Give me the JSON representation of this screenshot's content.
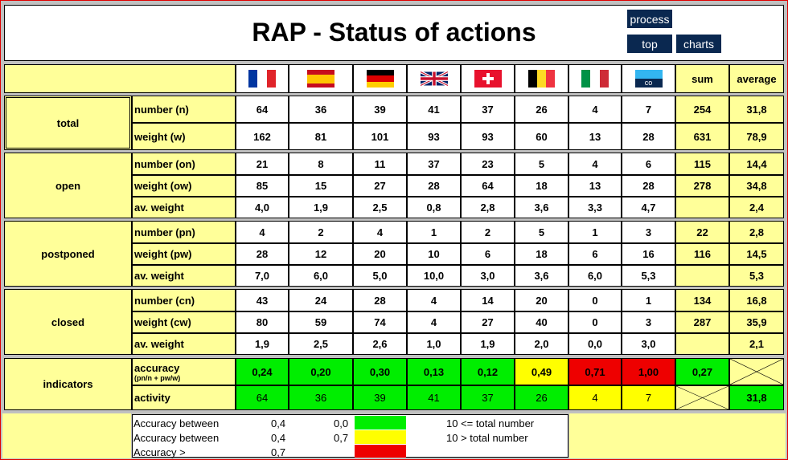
{
  "title": "RAP - Status of actions",
  "buttons": {
    "process": "process",
    "top": "top",
    "charts": "charts"
  },
  "columns": {
    "flags": [
      {
        "name": "france-flag"
      },
      {
        "name": "spain-flag"
      },
      {
        "name": "germany-flag"
      },
      {
        "name": "uk-flag"
      },
      {
        "name": "switzerland-flag"
      },
      {
        "name": "belgium-flag"
      },
      {
        "name": "italy-flag"
      },
      {
        "name": "co-flag",
        "text": "co"
      }
    ],
    "sum": "sum",
    "average": "average"
  },
  "groups": [
    {
      "label": "total",
      "rows": [
        {
          "label": "number (n)",
          "values": [
            "64",
            "36",
            "39",
            "41",
            "37",
            "26",
            "4",
            "7"
          ],
          "sum": "254",
          "avg": "31,8"
        },
        {
          "label": "weight (w)",
          "values": [
            "162",
            "81",
            "101",
            "93",
            "93",
            "60",
            "13",
            "28"
          ],
          "sum": "631",
          "avg": "78,9"
        }
      ]
    },
    {
      "label": "open",
      "rows": [
        {
          "label": "number (on)",
          "values": [
            "21",
            "8",
            "11",
            "37",
            "23",
            "5",
            "4",
            "6"
          ],
          "sum": "115",
          "avg": "14,4"
        },
        {
          "label": "weight (ow)",
          "values": [
            "85",
            "15",
            "27",
            "28",
            "64",
            "18",
            "13",
            "28"
          ],
          "sum": "278",
          "avg": "34,8"
        },
        {
          "label": "av. weight",
          "values": [
            "4,0",
            "1,9",
            "2,5",
            "0,8",
            "2,8",
            "3,6",
            "3,3",
            "4,7"
          ],
          "sum": "",
          "avg": "2,4"
        }
      ]
    },
    {
      "label": "postponed",
      "rows": [
        {
          "label": "number (pn)",
          "values": [
            "4",
            "2",
            "4",
            "1",
            "2",
            "5",
            "1",
            "3"
          ],
          "sum": "22",
          "avg": "2,8"
        },
        {
          "label": "weight (pw)",
          "values": [
            "28",
            "12",
            "20",
            "10",
            "6",
            "18",
            "6",
            "16"
          ],
          "sum": "116",
          "avg": "14,5"
        },
        {
          "label": "av. weight",
          "values": [
            "7,0",
            "6,0",
            "5,0",
            "10,0",
            "3,0",
            "3,6",
            "6,0",
            "5,3"
          ],
          "sum": "",
          "avg": "5,3"
        }
      ]
    },
    {
      "label": "closed",
      "rows": [
        {
          "label": "number (cn)",
          "values": [
            "43",
            "24",
            "28",
            "4",
            "14",
            "20",
            "0",
            "1"
          ],
          "sum": "134",
          "avg": "16,8"
        },
        {
          "label": "weight (cw)",
          "values": [
            "80",
            "59",
            "74",
            "4",
            "27",
            "40",
            "0",
            "3"
          ],
          "sum": "287",
          "avg": "35,9"
        },
        {
          "label": "av. weight",
          "values": [
            "1,9",
            "2,5",
            "2,6",
            "1,0",
            "1,9",
            "2,0",
            "0,0",
            "3,0"
          ],
          "sum": "",
          "avg": "2,1"
        }
      ]
    }
  ],
  "indicators": {
    "label": "indicators",
    "accuracy": {
      "label": "accuracy",
      "sublabel": "(pn/n + pw/w)",
      "values": [
        "0,24",
        "0,20",
        "0,30",
        "0,13",
        "0,12",
        "0,49",
        "0,71",
        "1,00"
      ],
      "colors": [
        "#00ee00",
        "#00ee00",
        "#00ee00",
        "#00ee00",
        "#00ee00",
        "#ffff00",
        "#ee0000",
        "#ee0000"
      ],
      "sum": "0,27",
      "sum_color": "#00ee00"
    },
    "activity": {
      "label": "activity",
      "values": [
        "64",
        "36",
        "39",
        "41",
        "37",
        "26",
        "4",
        "7"
      ],
      "colors": [
        "#00ee00",
        "#00ee00",
        "#00ee00",
        "#00ee00",
        "#00ee00",
        "#00ee00",
        "#ffff00",
        "#ffff00"
      ],
      "avg": "31,8",
      "avg_color": "#00ee00"
    }
  },
  "legend": {
    "rows": [
      {
        "label": "Accuracy between",
        "a": "0,4",
        "b": "0,0",
        "color": "#00ee00"
      },
      {
        "label": "Accuracy between",
        "a": "0,4",
        "b": "0,7",
        "color": "#ffff00"
      },
      {
        "label": "Accuracy >",
        "a": "0,7",
        "b": "",
        "color": "#ee0000"
      }
    ],
    "notes": [
      "10 <= total number",
      "10 > total number"
    ]
  }
}
